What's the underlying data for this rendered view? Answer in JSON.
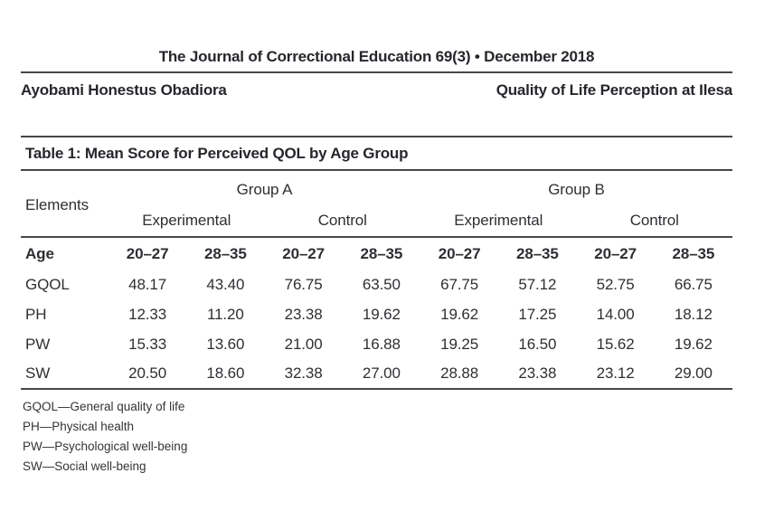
{
  "header": {
    "journal_line": "The Journal of Correctional Education 69(3) • December 2018",
    "author": "Ayobami Honestus Obadiora",
    "article_title": "Quality of Life Perception at Ilesa"
  },
  "table": {
    "title": "Table 1: Mean Score for Perceived QOL by Age Group",
    "elements_label": "Elements",
    "group_headers": [
      "Group A",
      "Group B"
    ],
    "subgroup_headers": [
      "Experimental",
      "Control",
      "Experimental",
      "Control"
    ],
    "age_row": {
      "label": "Age",
      "values": [
        "20–27",
        "28–35",
        "20–27",
        "28–35",
        "20–27",
        "28–35",
        "20–27",
        "28–35"
      ]
    },
    "rows": [
      {
        "label": "GQOL",
        "values": [
          "48.17",
          "43.40",
          "76.75",
          "63.50",
          "67.75",
          "57.12",
          "52.75",
          "66.75"
        ]
      },
      {
        "label": "PH",
        "values": [
          "12.33",
          "11.20",
          "23.38",
          "19.62",
          "19.62",
          "17.25",
          "14.00",
          "18.12"
        ]
      },
      {
        "label": "PW",
        "values": [
          "15.33",
          "13.60",
          "21.00",
          "16.88",
          "19.25",
          "16.50",
          "15.62",
          "19.62"
        ]
      },
      {
        "label": "SW",
        "values": [
          "20.50",
          "18.60",
          "32.38",
          "27.00",
          "28.88",
          "23.38",
          "23.12",
          "29.00"
        ]
      }
    ],
    "footnotes": [
      "GQOL—General quality of life",
      "PH—Physical health",
      "PW—Psychological well-being",
      "SW—Social well-being"
    ]
  },
  "colors": {
    "ink": "#26272c",
    "rule": "#47484b",
    "background": "#ffffff"
  }
}
